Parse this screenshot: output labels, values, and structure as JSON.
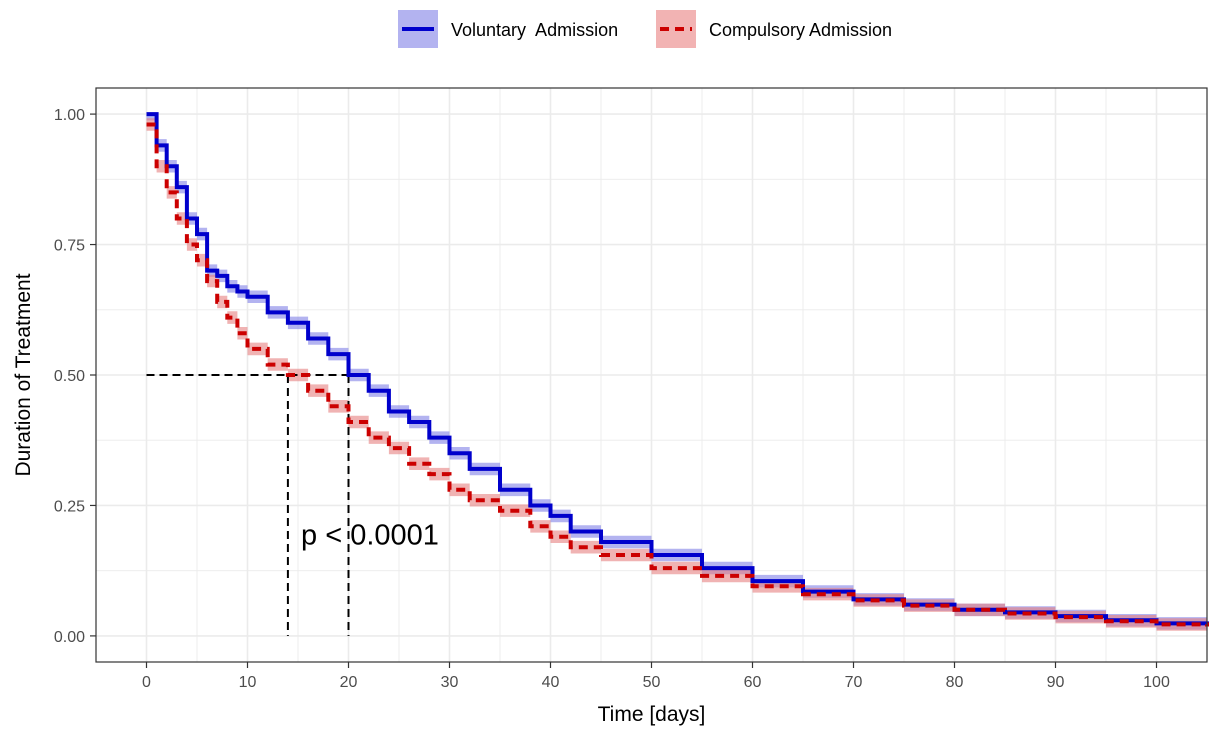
{
  "chart_data": {
    "type": "line",
    "subtype": "kaplan-meier-step",
    "title": "",
    "xlabel": "Time [days]",
    "ylabel": "Duration of Treatment",
    "xlim": [
      -5,
      105
    ],
    "ylim": [
      -0.05,
      1.05
    ],
    "x_ticks": [
      0,
      10,
      20,
      30,
      40,
      50,
      60,
      70,
      80,
      90,
      100
    ],
    "x_tick_labels": [
      "0",
      "10",
      "20",
      "30",
      "40",
      "50",
      "60",
      "70",
      "80",
      "90",
      "100"
    ],
    "y_ticks": [
      0,
      0.25,
      0.5,
      0.75,
      1.0
    ],
    "y_tick_labels": [
      "0.00",
      "0.25",
      "0.50",
      "0.75",
      "1.00"
    ],
    "grid": true,
    "legend_position": "top",
    "annotation": "p < 0.0001",
    "median_lines": {
      "y": 0.5,
      "x": [
        14,
        20
      ]
    },
    "series": [
      {
        "name": "Voluntary  Admission",
        "color": "#0000cc",
        "band_color": "#8080e6",
        "line_style": "solid",
        "x": [
          0,
          1,
          2,
          3,
          4,
          5,
          6,
          7,
          8,
          9,
          10,
          12,
          14,
          16,
          18,
          20,
          22,
          24,
          26,
          28,
          30,
          32,
          35,
          38,
          40,
          42,
          45,
          50,
          55,
          60,
          65,
          70,
          75,
          80,
          85,
          90,
          95,
          100,
          105
        ],
        "y": [
          1.0,
          0.94,
          0.9,
          0.86,
          0.8,
          0.77,
          0.7,
          0.69,
          0.67,
          0.66,
          0.65,
          0.62,
          0.6,
          0.57,
          0.54,
          0.5,
          0.47,
          0.43,
          0.41,
          0.38,
          0.35,
          0.32,
          0.28,
          0.25,
          0.23,
          0.2,
          0.18,
          0.155,
          0.13,
          0.105,
          0.085,
          0.07,
          0.06,
          0.05,
          0.045,
          0.038,
          0.03,
          0.024,
          0.02
        ]
      },
      {
        "name": "Compulsory Admission",
        "color": "#cc0000",
        "band_color": "#e68080",
        "line_style": "dashed",
        "x": [
          0,
          1,
          2,
          3,
          4,
          5,
          6,
          7,
          8,
          9,
          10,
          12,
          14,
          16,
          18,
          20,
          22,
          24,
          26,
          28,
          30,
          32,
          35,
          38,
          40,
          42,
          45,
          50,
          55,
          60,
          65,
          70,
          75,
          80,
          85,
          90,
          95,
          100,
          105
        ],
        "y": [
          0.98,
          0.9,
          0.85,
          0.8,
          0.75,
          0.72,
          0.68,
          0.64,
          0.61,
          0.58,
          0.55,
          0.52,
          0.5,
          0.47,
          0.44,
          0.41,
          0.38,
          0.36,
          0.33,
          0.31,
          0.28,
          0.26,
          0.24,
          0.21,
          0.19,
          0.17,
          0.155,
          0.13,
          0.115,
          0.095,
          0.08,
          0.068,
          0.058,
          0.05,
          0.043,
          0.036,
          0.028,
          0.022,
          0.018
        ]
      }
    ]
  }
}
